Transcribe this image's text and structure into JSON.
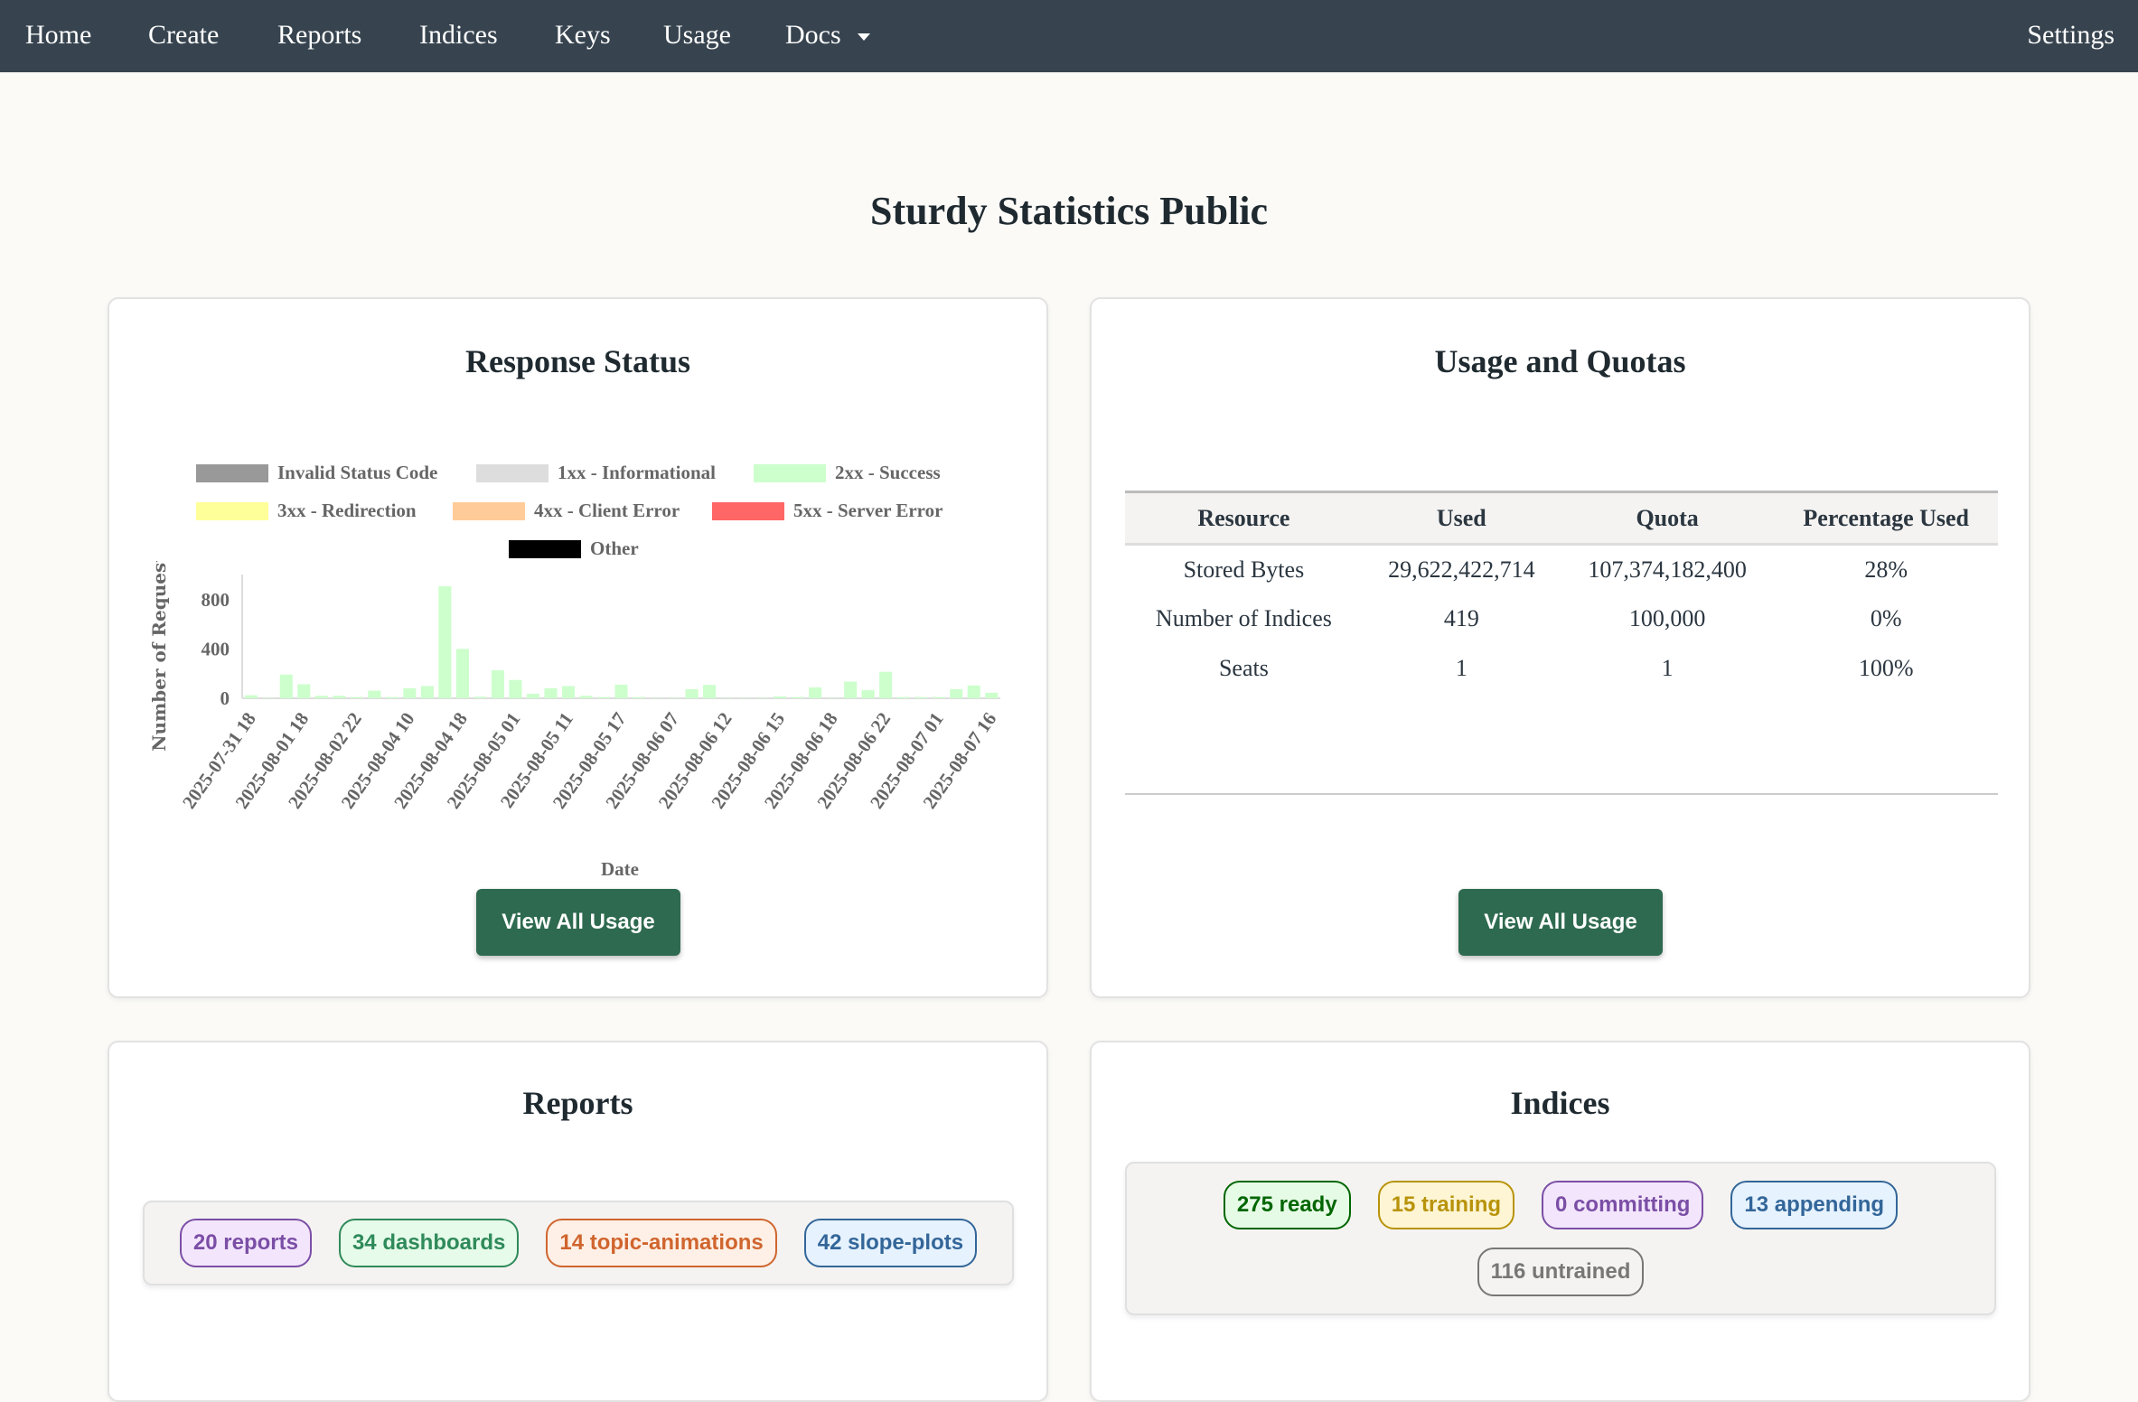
{
  "nav": {
    "items": [
      "Home",
      "Create",
      "Reports",
      "Indices",
      "Keys",
      "Usage",
      "Docs"
    ],
    "settings": "Settings"
  },
  "page_title": "Sturdy Statistics Public",
  "response_status": {
    "title": "Response Status",
    "button": "View All Usage"
  },
  "chart_data": {
    "type": "bar",
    "stacked": true,
    "xlabel": "Date",
    "ylabel": "Number of Requests",
    "ylim": [
      0,
      1000
    ],
    "y_ticks": [
      0,
      400,
      800
    ],
    "grid": false,
    "legend_placement": "top",
    "legend": [
      {
        "name": "Invalid Status Code",
        "color": "#999999"
      },
      {
        "name": "1xx - Informational",
        "color": "#dddddd"
      },
      {
        "name": "2xx - Success",
        "color": "#ccffcc"
      },
      {
        "name": "3xx - Redirection",
        "color": "#ffff99"
      },
      {
        "name": "4xx - Client Error",
        "color": "#ffcc99"
      },
      {
        "name": "5xx - Server Error",
        "color": "#ff6666"
      },
      {
        "name": "Other",
        "color": "#000000"
      }
    ],
    "x_tick_labels": [
      "2025-07-31 18",
      "2025-08-01 18",
      "2025-08-02 22",
      "2025-08-04 10",
      "2025-08-04 18",
      "2025-08-05 01",
      "2025-08-05 11",
      "2025-08-05 17",
      "2025-08-06 07",
      "2025-08-06 12",
      "2025-08-06 15",
      "2025-08-06 18",
      "2025-08-06 22",
      "2025-08-07 01",
      "2025-08-07 16"
    ],
    "series": [
      {
        "name": "2xx - Success",
        "values": [
          25,
          3,
          193,
          114,
          20,
          20,
          10,
          62,
          10,
          82,
          99,
          911,
          401,
          12,
          228,
          149,
          37,
          82,
          99,
          20,
          10,
          111,
          10,
          3,
          3,
          74,
          109,
          3,
          3,
          3,
          15,
          10,
          89,
          3,
          136,
          67,
          215,
          10,
          10,
          10,
          74,
          104,
          45
        ]
      }
    ]
  },
  "usage": {
    "title": "Usage and Quotas",
    "button": "View All Usage",
    "headers": [
      "Resource",
      "Used",
      "Quota",
      "Percentage Used"
    ],
    "rows": [
      [
        "Stored Bytes",
        "29,622,422,714",
        "107,374,182,400",
        "28%"
      ],
      [
        "Number of Indices",
        "419",
        "100,000",
        "0%"
      ],
      [
        "Seats",
        "1",
        "1",
        "100%"
      ]
    ]
  },
  "reports": {
    "title": "Reports",
    "badges": [
      {
        "label": "20 reports",
        "color": "#7b4ea6",
        "bg": "#f3e6fc"
      },
      {
        "label": "34 dashboards",
        "color": "#2f8a5a",
        "bg": "#e6fbea"
      },
      {
        "label": "14 topic-animations",
        "color": "#d0652e",
        "bg": "#fef0e6"
      },
      {
        "label": "42 slope-plots",
        "color": "#336699",
        "bg": "#e6f2fe"
      }
    ]
  },
  "indices": {
    "title": "Indices",
    "badges": [
      {
        "label": "275 ready",
        "color": "#006600",
        "bg": "#e6fbe6"
      },
      {
        "label": "15 training",
        "color": "#b8930a",
        "bg": "#fdf5d3"
      },
      {
        "label": "0 committing",
        "color": "#7b4ea6",
        "bg": "#f3e6fc"
      },
      {
        "label": "13 appending",
        "color": "#336699",
        "bg": "#e6f2fe"
      },
      {
        "label": "116 untrained",
        "color": "#777777",
        "bg": "#f4f3f1"
      }
    ]
  }
}
